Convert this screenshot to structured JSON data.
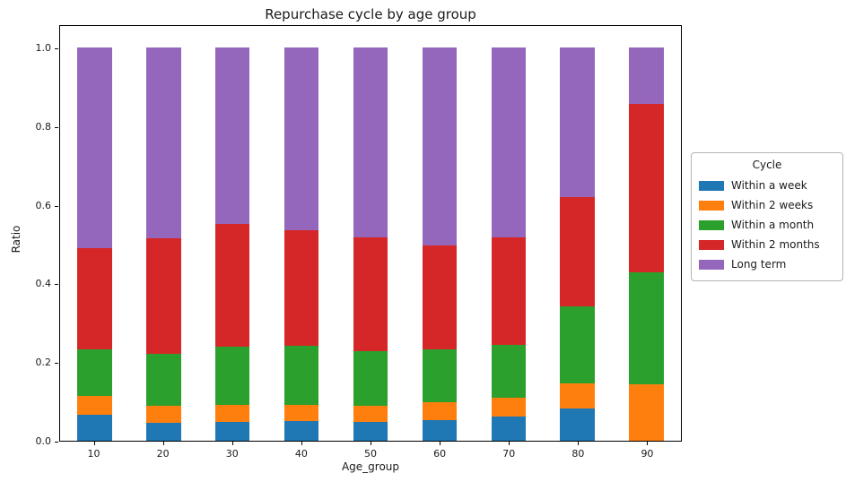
{
  "chart_data": {
    "type": "bar",
    "stacked": true,
    "title": "Repurchase cycle by age group",
    "xlabel": "Age_group",
    "ylabel": "Ratio",
    "categories": [
      "10",
      "20",
      "30",
      "40",
      "50",
      "60",
      "70",
      "80",
      "90"
    ],
    "series": [
      {
        "name": "Within a week",
        "color": "#1f77b4",
        "values": [
          0.066,
          0.046,
          0.049,
          0.051,
          0.049,
          0.052,
          0.061,
          0.081,
          0.0
        ]
      },
      {
        "name": "Within 2 weeks",
        "color": "#ff7f0e",
        "values": [
          0.048,
          0.042,
          0.042,
          0.041,
          0.04,
          0.046,
          0.048,
          0.064,
          0.143
        ]
      },
      {
        "name": "Within a month",
        "color": "#2ca02c",
        "values": [
          0.119,
          0.134,
          0.148,
          0.15,
          0.138,
          0.134,
          0.135,
          0.197,
          0.286
        ]
      },
      {
        "name": "Within 2 months",
        "color": "#d62728",
        "values": [
          0.257,
          0.294,
          0.312,
          0.294,
          0.291,
          0.265,
          0.274,
          0.278,
          0.428
        ]
      },
      {
        "name": "Long term",
        "color": "#9467bd",
        "values": [
          0.51,
          0.484,
          0.449,
          0.464,
          0.482,
          0.503,
          0.482,
          0.38,
          0.143
        ]
      }
    ],
    "yticks": [
      0.0,
      0.2,
      0.4,
      0.6,
      0.8,
      1.0
    ],
    "ylim": [
      0,
      1.06
    ],
    "grid": false,
    "legend_title": "Cycle",
    "legend_position": "center right, outside plot"
  }
}
